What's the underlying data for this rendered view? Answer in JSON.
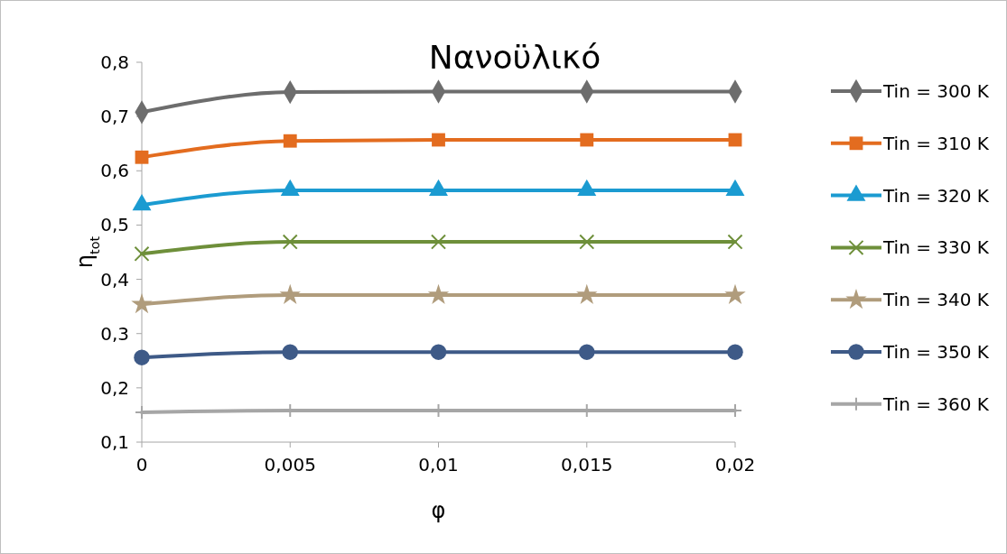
{
  "chart_data": {
    "type": "line",
    "title": "Νανοϋλικό",
    "xlabel": "φ",
    "ylabel": "η$_{tot}$",
    "x": [
      0,
      0.005,
      0.01,
      0.015,
      0.02
    ],
    "xlim": [
      0,
      0.02
    ],
    "xticks": [
      0,
      {
        "value": 0.005,
        "label": "0,005"
      },
      {
        "value": 0.01,
        "label": "0,01"
      },
      {
        "value": 0.015,
        "label": "0,015"
      },
      {
        "value": 0.02,
        "label": "0,02"
      }
    ],
    "ylim": [
      0.1,
      0.8
    ],
    "yticks": [
      {
        "value": 0.1,
        "label": "0,1"
      },
      {
        "value": 0.2,
        "label": "0,2"
      },
      {
        "value": 0.3,
        "label": "0,3"
      },
      {
        "value": 0.4,
        "label": "0,4"
      },
      {
        "value": 0.5,
        "label": "0,5"
      },
      {
        "value": 0.6,
        "label": "0,6"
      },
      {
        "value": 0.7,
        "label": "0,7"
      },
      {
        "value": 0.8,
        "label": "0,8"
      }
    ],
    "grid": false,
    "legend": "right",
    "line_style": "solid",
    "series": [
      {
        "name": "Tin = 300 K",
        "color": "#6d6d6d",
        "marker": "diamond",
        "values": [
          0.708,
          0.745,
          0.746,
          0.746,
          0.746
        ]
      },
      {
        "name": "Tin = 310 K",
        "color": "#e36c1f",
        "marker": "square",
        "values": [
          0.625,
          0.655,
          0.657,
          0.657,
          0.657
        ]
      },
      {
        "name": "Tin = 320 K",
        "color": "#1b9bd1",
        "marker": "triangle",
        "values": [
          0.537,
          0.564,
          0.564,
          0.564,
          0.564
        ]
      },
      {
        "name": "Tin = 330 K",
        "color": "#6e8f3a",
        "marker": "x",
        "values": [
          0.447,
          0.469,
          0.469,
          0.469,
          0.469
        ]
      },
      {
        "name": "Tin = 340 K",
        "color": "#b09c7c",
        "marker": "star",
        "values": [
          0.354,
          0.371,
          0.371,
          0.371,
          0.371
        ]
      },
      {
        "name": "Tin = 350 K",
        "color": "#3e5a87",
        "marker": "circle",
        "values": [
          0.256,
          0.266,
          0.266,
          0.266,
          0.266
        ]
      },
      {
        "name": "Tin = 360 K",
        "color": "#a6a6a6",
        "marker": "cross",
        "values": [
          0.155,
          0.158,
          0.158,
          0.158,
          0.158
        ]
      }
    ]
  }
}
